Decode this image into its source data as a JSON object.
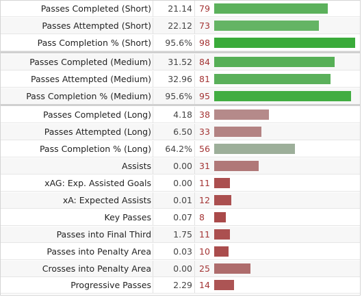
{
  "rows": [
    {
      "label": "Passes Completed (Short)",
      "value": "21.14",
      "percentile": "79",
      "percentile_num": 79,
      "bar_color": "#5cb15c"
    },
    {
      "label": "Passes Attempted (Short)",
      "value": "22.12",
      "percentile": "73",
      "percentile_num": 73,
      "bar_color": "#64b464"
    },
    {
      "label": "Pass Completion % (Short)",
      "value": "95.6%",
      "percentile": "98",
      "percentile_num": 98,
      "bar_color": "#3aab3a"
    },
    {
      "label": "Passes Completed (Medium)",
      "value": "31.52",
      "percentile": "84",
      "percentile_num": 84,
      "bar_color": "#56af56"
    },
    {
      "label": "Passes Attempted (Medium)",
      "value": "32.96",
      "percentile": "81",
      "percentile_num": 81,
      "bar_color": "#5ab05a"
    },
    {
      "label": "Pass Completion % (Medium)",
      "value": "95.6%",
      "percentile": "95",
      "percentile_num": 95,
      "bar_color": "#42ad42"
    },
    {
      "label": "Passes Completed (Long)",
      "value": "4.18",
      "percentile": "38",
      "percentile_num": 38,
      "bar_color": "#b58a8a"
    },
    {
      "label": "Passes Attempted (Long)",
      "value": "6.50",
      "percentile": "33",
      "percentile_num": 33,
      "bar_color": "#b38383"
    },
    {
      "label": "Pass Completion % (Long)",
      "value": "64.2%",
      "percentile": "56",
      "percentile_num": 56,
      "bar_color": "#9daf9a"
    },
    {
      "label": "Assists",
      "value": "0.00",
      "percentile": "31",
      "percentile_num": 31,
      "bar_color": "#b07878"
    },
    {
      "label": "xAG: Exp. Assisted Goals",
      "value": "0.00",
      "percentile": "11",
      "percentile_num": 11,
      "bar_color": "#ab4f4f"
    },
    {
      "label": "xA: Expected Assists",
      "value": "0.01",
      "percentile": "12",
      "percentile_num": 12,
      "bar_color": "#ab5050"
    },
    {
      "label": "Key Passes",
      "value": "0.07",
      "percentile": "8",
      "percentile_num": 8,
      "bar_color": "#a94a4a"
    },
    {
      "label": "Passes into Final Third",
      "value": "1.75",
      "percentile": "11",
      "percentile_num": 11,
      "bar_color": "#ab4f4f"
    },
    {
      "label": "Passes into Penalty Area",
      "value": "0.03",
      "percentile": "10",
      "percentile_num": 10,
      "bar_color": "#aa4d4d"
    },
    {
      "label": "Crosses into Penalty Area",
      "value": "0.00",
      "percentile": "25",
      "percentile_num": 25,
      "bar_color": "#ae6c6c"
    },
    {
      "label": "Progressive Passes",
      "value": "2.29",
      "percentile": "14",
      "percentile_num": 14,
      "bar_color": "#ac5454"
    }
  ]
}
